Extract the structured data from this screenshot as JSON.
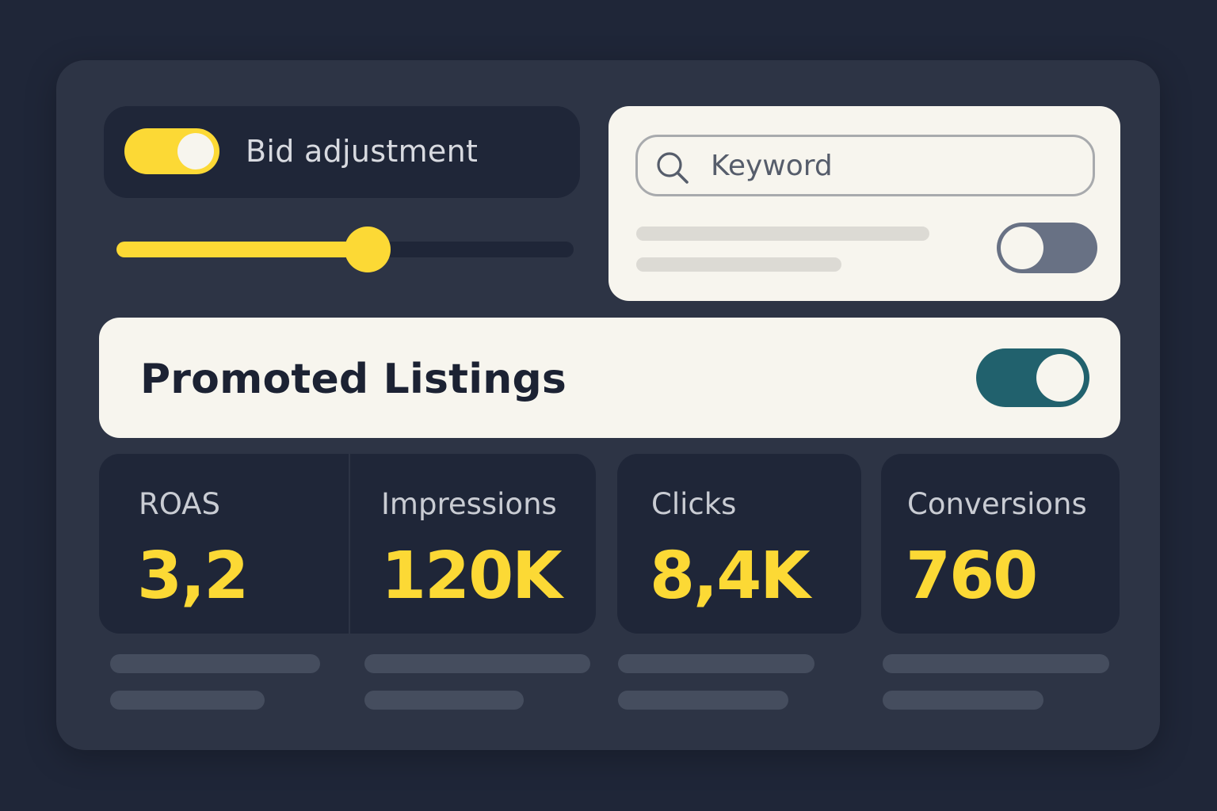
{
  "colors": {
    "accent": "#fcd935",
    "teal": "#21616d",
    "toggle_off": "#687184",
    "skeleton_light": "#dcdad4",
    "skeleton_dark": "#454d5e"
  },
  "bid_adjustment": {
    "label": "Bid adjustment",
    "enabled": true,
    "slider_value_percent": 55
  },
  "search": {
    "icon": "search-icon",
    "placeholder": "Keyword",
    "toggle_enabled": false
  },
  "promoted_listings": {
    "title": "Promoted Listings",
    "enabled": true
  },
  "metrics": [
    {
      "label": "ROAS",
      "value": "3,2"
    },
    {
      "label": "Impressions",
      "value": "120K"
    },
    {
      "label": "Clicks",
      "value": "8,4K"
    },
    {
      "label": "Conversions",
      "value": "760"
    }
  ]
}
